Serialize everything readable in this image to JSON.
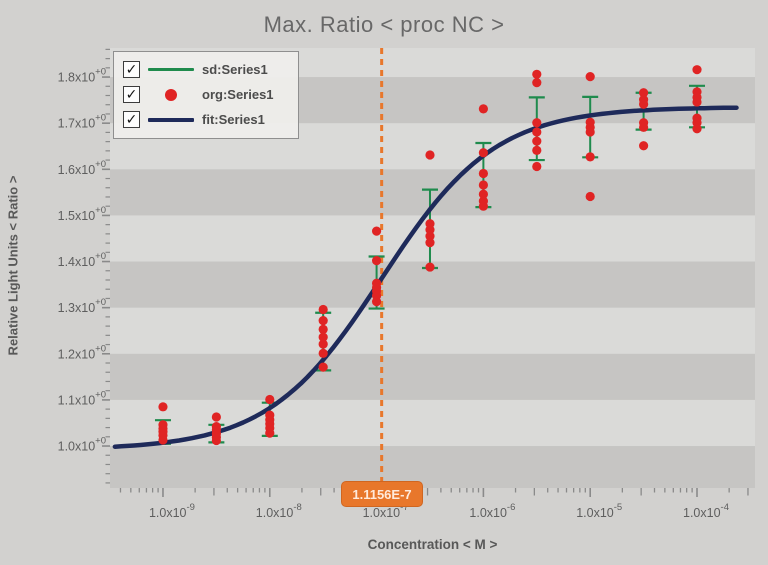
{
  "title_bar": {
    "title": "Max. Ratio < proc NC >"
  },
  "legend": {
    "check_glyph": "✓",
    "items": [
      {
        "label": "sd:Series1",
        "marker": "line",
        "color": "#1f8b4d",
        "checked": true
      },
      {
        "label": "org:Series1",
        "marker": "dot",
        "color": "#e02424",
        "checked": true
      },
      {
        "label": "fit:Series1",
        "marker": "line",
        "color": "#1e2a5a",
        "checked": true
      }
    ]
  },
  "colors": {
    "page_bg": "#d2d1cf",
    "band_light": "#dadad8",
    "band_dark": "#c6c5c3",
    "title_text": "#686868",
    "axis_text": "#5e5e5e",
    "tick": "#8a8a8a",
    "sd_green": "#1f8b4d",
    "org_red": "#e02424",
    "fit_navy": "#1e2a5a",
    "ec50_orange": "#e8772b",
    "ec50_text": "#ffeadb"
  },
  "chart_data": {
    "type": "scatter",
    "title": "Max. Ratio < proc NC >",
    "xlabel": "Concentration < M >",
    "ylabel": "Relative Light Units < Ratio >",
    "x_scale": "log10",
    "xlim_log": [
      -9.496,
      -3.457
    ],
    "ylim": [
      0.909,
      1.863
    ],
    "grid": "horizontal-stripe-bands",
    "stripe_bands_dark": [
      [
        0.909,
        1.0
      ],
      [
        1.1,
        1.2
      ],
      [
        1.3,
        1.4
      ],
      [
        1.5,
        1.6
      ],
      [
        1.7,
        1.8
      ]
    ],
    "x_major_ticks": [
      {
        "log": -9,
        "mantissa": "1.0x10",
        "exp": "-9"
      },
      {
        "log": -8,
        "mantissa": "1.0x10",
        "exp": "-8"
      },
      {
        "log": -7,
        "mantissa": "1.0x10",
        "exp": "-7"
      },
      {
        "log": -6,
        "mantissa": "1.0x10",
        "exp": "-6"
      },
      {
        "log": -5,
        "mantissa": "1.0x10",
        "exp": "-5"
      },
      {
        "log": -4,
        "mantissa": "1.0x10",
        "exp": "-4"
      }
    ],
    "y_major_ticks": [
      {
        "value": 1.0,
        "mantissa": "1.0x10",
        "exp": "+0"
      },
      {
        "value": 1.1,
        "mantissa": "1.1x10",
        "exp": "+0"
      },
      {
        "value": 1.2,
        "mantissa": "1.2x10",
        "exp": "+0"
      },
      {
        "value": 1.3,
        "mantissa": "1.3x10",
        "exp": "+0"
      },
      {
        "value": 1.4,
        "mantissa": "1.4x10",
        "exp": "+0"
      },
      {
        "value": 1.5,
        "mantissa": "1.5x10",
        "exp": "+0"
      },
      {
        "value": 1.6,
        "mantissa": "1.6x10",
        "exp": "+0"
      },
      {
        "value": 1.7,
        "mantissa": "1.7x10",
        "exp": "+0"
      },
      {
        "value": 1.8,
        "mantissa": "1.8x10",
        "exp": "+0"
      }
    ],
    "series": [
      {
        "name": "sd:Series1",
        "type": "errorbar",
        "color": "#1f8b4d",
        "points": [
          {
            "logx": -9.0,
            "lo": 1.005,
            "hi": 1.056
          },
          {
            "logx": -8.5,
            "lo": 1.008,
            "hi": 1.046
          },
          {
            "logx": -8.0,
            "lo": 1.022,
            "hi": 1.094
          },
          {
            "logx": -7.5,
            "lo": 1.164,
            "hi": 1.289
          },
          {
            "logx": -7.0,
            "lo": 1.298,
            "hi": 1.411
          },
          {
            "logx": -6.5,
            "lo": 1.386,
            "hi": 1.556
          },
          {
            "logx": -6.0,
            "lo": 1.518,
            "hi": 1.657
          },
          {
            "logx": -5.5,
            "lo": 1.62,
            "hi": 1.756
          },
          {
            "logx": -5.0,
            "lo": 1.626,
            "hi": 1.757
          },
          {
            "logx": -4.5,
            "lo": 1.686,
            "hi": 1.766
          },
          {
            "logx": -4.0,
            "lo": 1.691,
            "hi": 1.781
          }
        ]
      },
      {
        "name": "org:Series1",
        "type": "scatter",
        "color": "#e02424",
        "groups": [
          {
            "logx": -9.0,
            "values": [
              1.085,
              1.046,
              1.038,
              1.031,
              1.023,
              1.013
            ]
          },
          {
            "logx": -8.5,
            "values": [
              1.063,
              1.042,
              1.035,
              1.027,
              1.019,
              1.012
            ]
          },
          {
            "logx": -8.0,
            "values": [
              1.101,
              1.067,
              1.057,
              1.048,
              1.039,
              1.028
            ]
          },
          {
            "logx": -7.5,
            "values": [
              1.296,
              1.272,
              1.253,
              1.236,
              1.221,
              1.201,
              1.171
            ]
          },
          {
            "logx": -7.0,
            "values": [
              1.466,
              1.402,
              1.353,
              1.344,
              1.336,
              1.326,
              1.313
            ]
          },
          {
            "logx": -6.5,
            "values": [
              1.631,
              1.482,
              1.469,
              1.455,
              1.441,
              1.388
            ]
          },
          {
            "logx": -6.0,
            "values": [
              1.731,
              1.636,
              1.591,
              1.566,
              1.546,
              1.531,
              1.52
            ]
          },
          {
            "logx": -5.5,
            "values": [
              1.806,
              1.788,
              1.701,
              1.681,
              1.661,
              1.641,
              1.606
            ]
          },
          {
            "logx": -5.0,
            "values": [
              1.801,
              1.702,
              1.691,
              1.681,
              1.627,
              1.541
            ]
          },
          {
            "logx": -4.5,
            "values": [
              1.766,
              1.751,
              1.741,
              1.701,
              1.691,
              1.651
            ]
          },
          {
            "logx": -4.0,
            "values": [
              1.816,
              1.768,
              1.756,
              1.746,
              1.711,
              1.701,
              1.688
            ]
          }
        ]
      },
      {
        "name": "fit:Series1",
        "type": "sigmoid-line",
        "color": "#1e2a5a",
        "params": {
          "bottom": 0.992,
          "top": 1.735,
          "ec50_log": -6.9525,
          "hill": 0.82
        },
        "x_start_log": -9.45,
        "x_end_log": -3.63
      }
    ],
    "annotation": {
      "vline_log": -6.9525,
      "label": "1.1156E-7"
    }
  }
}
